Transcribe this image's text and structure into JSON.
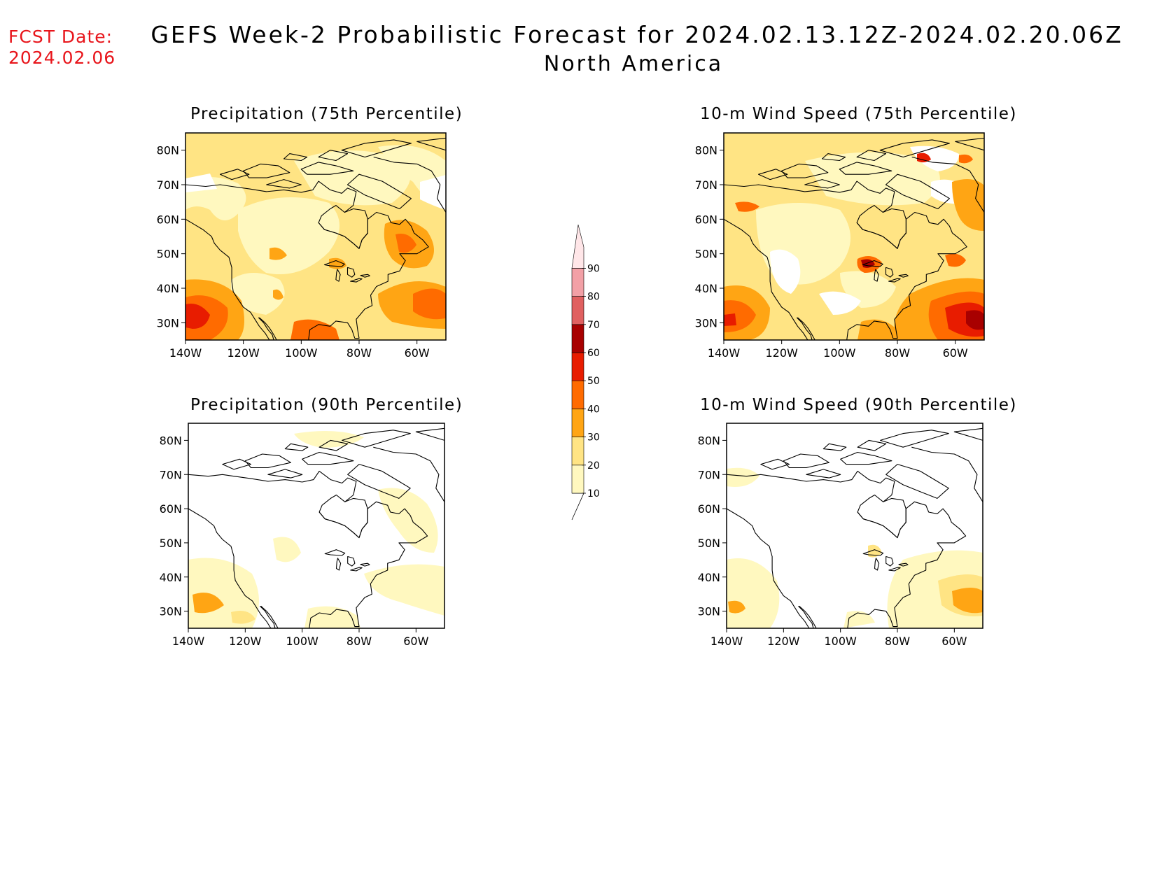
{
  "header": {
    "fcst_label": "FCST Date:",
    "fcst_date": "2024.02.06",
    "title": "GEFS Week-2 Probabilistic Forecast for 2024.02.13.12Z-2024.02.20.06Z",
    "subtitle": "North America"
  },
  "panels": [
    {
      "id": "precip75",
      "title": "Precipitation (75th Percentile)"
    },
    {
      "id": "wind75",
      "title": "10-m Wind Speed (75th Percentile)"
    },
    {
      "id": "precip90",
      "title": "Precipitation (90th Percentile)"
    },
    {
      "id": "wind90",
      "title": "10-m Wind Speed (90th Percentile)"
    }
  ],
  "axes": {
    "lat_ticks": [
      "80N",
      "70N",
      "60N",
      "50N",
      "40N",
      "30N"
    ],
    "lon_ticks": [
      "140W",
      "120W",
      "100W",
      "80W",
      "60W"
    ]
  },
  "colorbar": {
    "levels": [
      "10",
      "20",
      "30",
      "40",
      "50",
      "60",
      "70",
      "80",
      "90"
    ],
    "colors": [
      "#fff8bf",
      "#ffe484",
      "#ffa514",
      "#ff6b00",
      "#e81c00",
      "#a80000",
      "#e06060",
      "#f2a0a6",
      "#ffe6e8"
    ]
  }
}
